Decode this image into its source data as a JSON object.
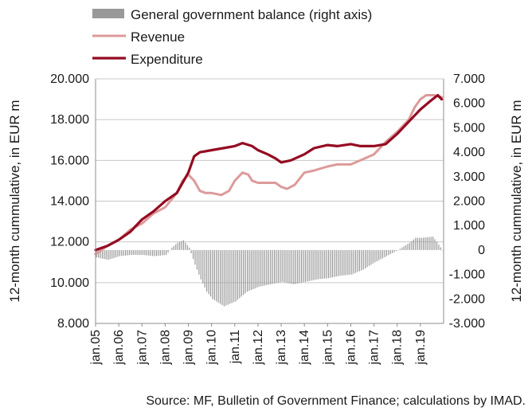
{
  "chart_data": {
    "type": "line",
    "combo": "lines on left axis, bars on right axis",
    "left_axis": {
      "label": "12-month cummulative, in EUR m",
      "range": [
        8000,
        20000
      ],
      "ticks": [
        8000,
        10000,
        12000,
        14000,
        16000,
        18000,
        20000
      ],
      "tick_labels": [
        "8.000",
        "10.000",
        "12.000",
        "14.000",
        "16.000",
        "18.000",
        "20.000"
      ]
    },
    "right_axis": {
      "label": "12-month cummulative, in EUR m",
      "range": [
        -3000,
        7000
      ],
      "ticks": [
        -3000,
        -2000,
        -1000,
        0,
        1000,
        2000,
        3000,
        4000,
        5000,
        6000,
        7000
      ],
      "tick_labels": [
        "-3.000",
        "-2.000",
        "-1.000",
        "0",
        "1.000",
        "2.000",
        "3.000",
        "4.000",
        "5.000",
        "6.000",
        "7.000"
      ]
    },
    "x_axis": {
      "categories": [
        "jan.05",
        "jan.06",
        "jan.07",
        "jan.08",
        "jan.09",
        "jan.10",
        "jan.11",
        "jan.12",
        "jan.13",
        "jan.14",
        "jan.15",
        "jan.16",
        "jan.17",
        "jan.18",
        "jan.19"
      ],
      "range": [
        "2005-01",
        "2019-12"
      ]
    },
    "legend": {
      "position": "top",
      "items": [
        "General government balance (right axis)",
        "Revenue",
        "Expenditure"
      ]
    },
    "source": "Source: MF, Bulletin of Government Finance; calculations by IMAD.",
    "colors": {
      "balance": "#999999",
      "revenue": "#dd9a9a",
      "expenditure": "#950b22",
      "grid": "#c8c8c8",
      "axis": "#8c8c8c"
    },
    "series": [
      {
        "name": "Revenue",
        "axis": "left",
        "points": [
          [
            "2005-01",
            11400
          ],
          [
            "2005-07",
            11800
          ],
          [
            "2006-01",
            12100
          ],
          [
            "2006-07",
            12600
          ],
          [
            "2007-01",
            12900
          ],
          [
            "2007-07",
            13400
          ],
          [
            "2008-01",
            13700
          ],
          [
            "2008-07",
            14400
          ],
          [
            "2008-10",
            15000
          ],
          [
            "2009-01",
            15300
          ],
          [
            "2009-04",
            15000
          ],
          [
            "2009-07",
            14500
          ],
          [
            "2009-10",
            14400
          ],
          [
            "2010-01",
            14400
          ],
          [
            "2010-06",
            14300
          ],
          [
            "2010-10",
            14500
          ],
          [
            "2011-01",
            15000
          ],
          [
            "2011-05",
            15400
          ],
          [
            "2011-08",
            15300
          ],
          [
            "2011-10",
            15000
          ],
          [
            "2012-01",
            14900
          ],
          [
            "2012-06",
            14900
          ],
          [
            "2012-10",
            14900
          ],
          [
            "2013-01",
            14700
          ],
          [
            "2013-04",
            14600
          ],
          [
            "2013-08",
            14800
          ],
          [
            "2014-01",
            15400
          ],
          [
            "2014-06",
            15500
          ],
          [
            "2015-01",
            15700
          ],
          [
            "2015-06",
            15800
          ],
          [
            "2016-01",
            15800
          ],
          [
            "2016-06",
            16000
          ],
          [
            "2017-01",
            16300
          ],
          [
            "2017-07",
            16900
          ],
          [
            "2018-01",
            17400
          ],
          [
            "2018-07",
            18000
          ],
          [
            "2018-10",
            18600
          ],
          [
            "2019-01",
            19000
          ],
          [
            "2019-04",
            19200
          ],
          [
            "2019-08",
            19200
          ],
          [
            "2019-12",
            19100
          ]
        ]
      },
      {
        "name": "Expenditure",
        "axis": "left",
        "points": [
          [
            "2005-01",
            11600
          ],
          [
            "2005-07",
            11800
          ],
          [
            "2006-01",
            12100
          ],
          [
            "2006-07",
            12500
          ],
          [
            "2007-01",
            13100
          ],
          [
            "2007-07",
            13500
          ],
          [
            "2008-01",
            14000
          ],
          [
            "2008-07",
            14400
          ],
          [
            "2009-01",
            15400
          ],
          [
            "2009-04",
            16200
          ],
          [
            "2009-07",
            16400
          ],
          [
            "2010-01",
            16500
          ],
          [
            "2010-07",
            16600
          ],
          [
            "2011-01",
            16700
          ],
          [
            "2011-05",
            16850
          ],
          [
            "2011-10",
            16700
          ],
          [
            "2012-01",
            16500
          ],
          [
            "2012-06",
            16300
          ],
          [
            "2012-10",
            16100
          ],
          [
            "2013-01",
            15900
          ],
          [
            "2013-06",
            16000
          ],
          [
            "2014-01",
            16300
          ],
          [
            "2014-06",
            16600
          ],
          [
            "2015-01",
            16750
          ],
          [
            "2015-06",
            16700
          ],
          [
            "2016-01",
            16800
          ],
          [
            "2016-06",
            16700
          ],
          [
            "2017-01",
            16700
          ],
          [
            "2017-07",
            16800
          ],
          [
            "2018-01",
            17300
          ],
          [
            "2018-07",
            17900
          ],
          [
            "2019-01",
            18500
          ],
          [
            "2019-06",
            18900
          ],
          [
            "2019-10",
            19200
          ],
          [
            "2019-12",
            19000
          ]
        ]
      },
      {
        "name": "General government balance (right axis)",
        "axis": "right",
        "type": "bar",
        "points": [
          [
            "2005-01",
            -300
          ],
          [
            "2005-07",
            -400
          ],
          [
            "2006-01",
            -250
          ],
          [
            "2006-07",
            -200
          ],
          [
            "2007-01",
            -200
          ],
          [
            "2007-07",
            -250
          ],
          [
            "2008-01",
            -200
          ],
          [
            "2008-04",
            100
          ],
          [
            "2008-07",
            300
          ],
          [
            "2008-10",
            400
          ],
          [
            "2009-01",
            100
          ],
          [
            "2009-04",
            -600
          ],
          [
            "2009-07",
            -1200
          ],
          [
            "2009-10",
            -1700
          ],
          [
            "2010-01",
            -2000
          ],
          [
            "2010-07",
            -2300
          ],
          [
            "2011-01",
            -2100
          ],
          [
            "2011-07",
            -1700
          ],
          [
            "2012-01",
            -1500
          ],
          [
            "2012-07",
            -1400
          ],
          [
            "2013-01",
            -1300
          ],
          [
            "2013-07",
            -1400
          ],
          [
            "2014-01",
            -1300
          ],
          [
            "2014-07",
            -1200
          ],
          [
            "2015-01",
            -1150
          ],
          [
            "2015-07",
            -1050
          ],
          [
            "2016-01",
            -1000
          ],
          [
            "2016-07",
            -800
          ],
          [
            "2017-01",
            -500
          ],
          [
            "2017-07",
            -250
          ],
          [
            "2018-01",
            0
          ],
          [
            "2018-07",
            300
          ],
          [
            "2018-10",
            500
          ],
          [
            "2019-01",
            500
          ],
          [
            "2019-07",
            550
          ],
          [
            "2019-12",
            0
          ]
        ]
      }
    ]
  }
}
